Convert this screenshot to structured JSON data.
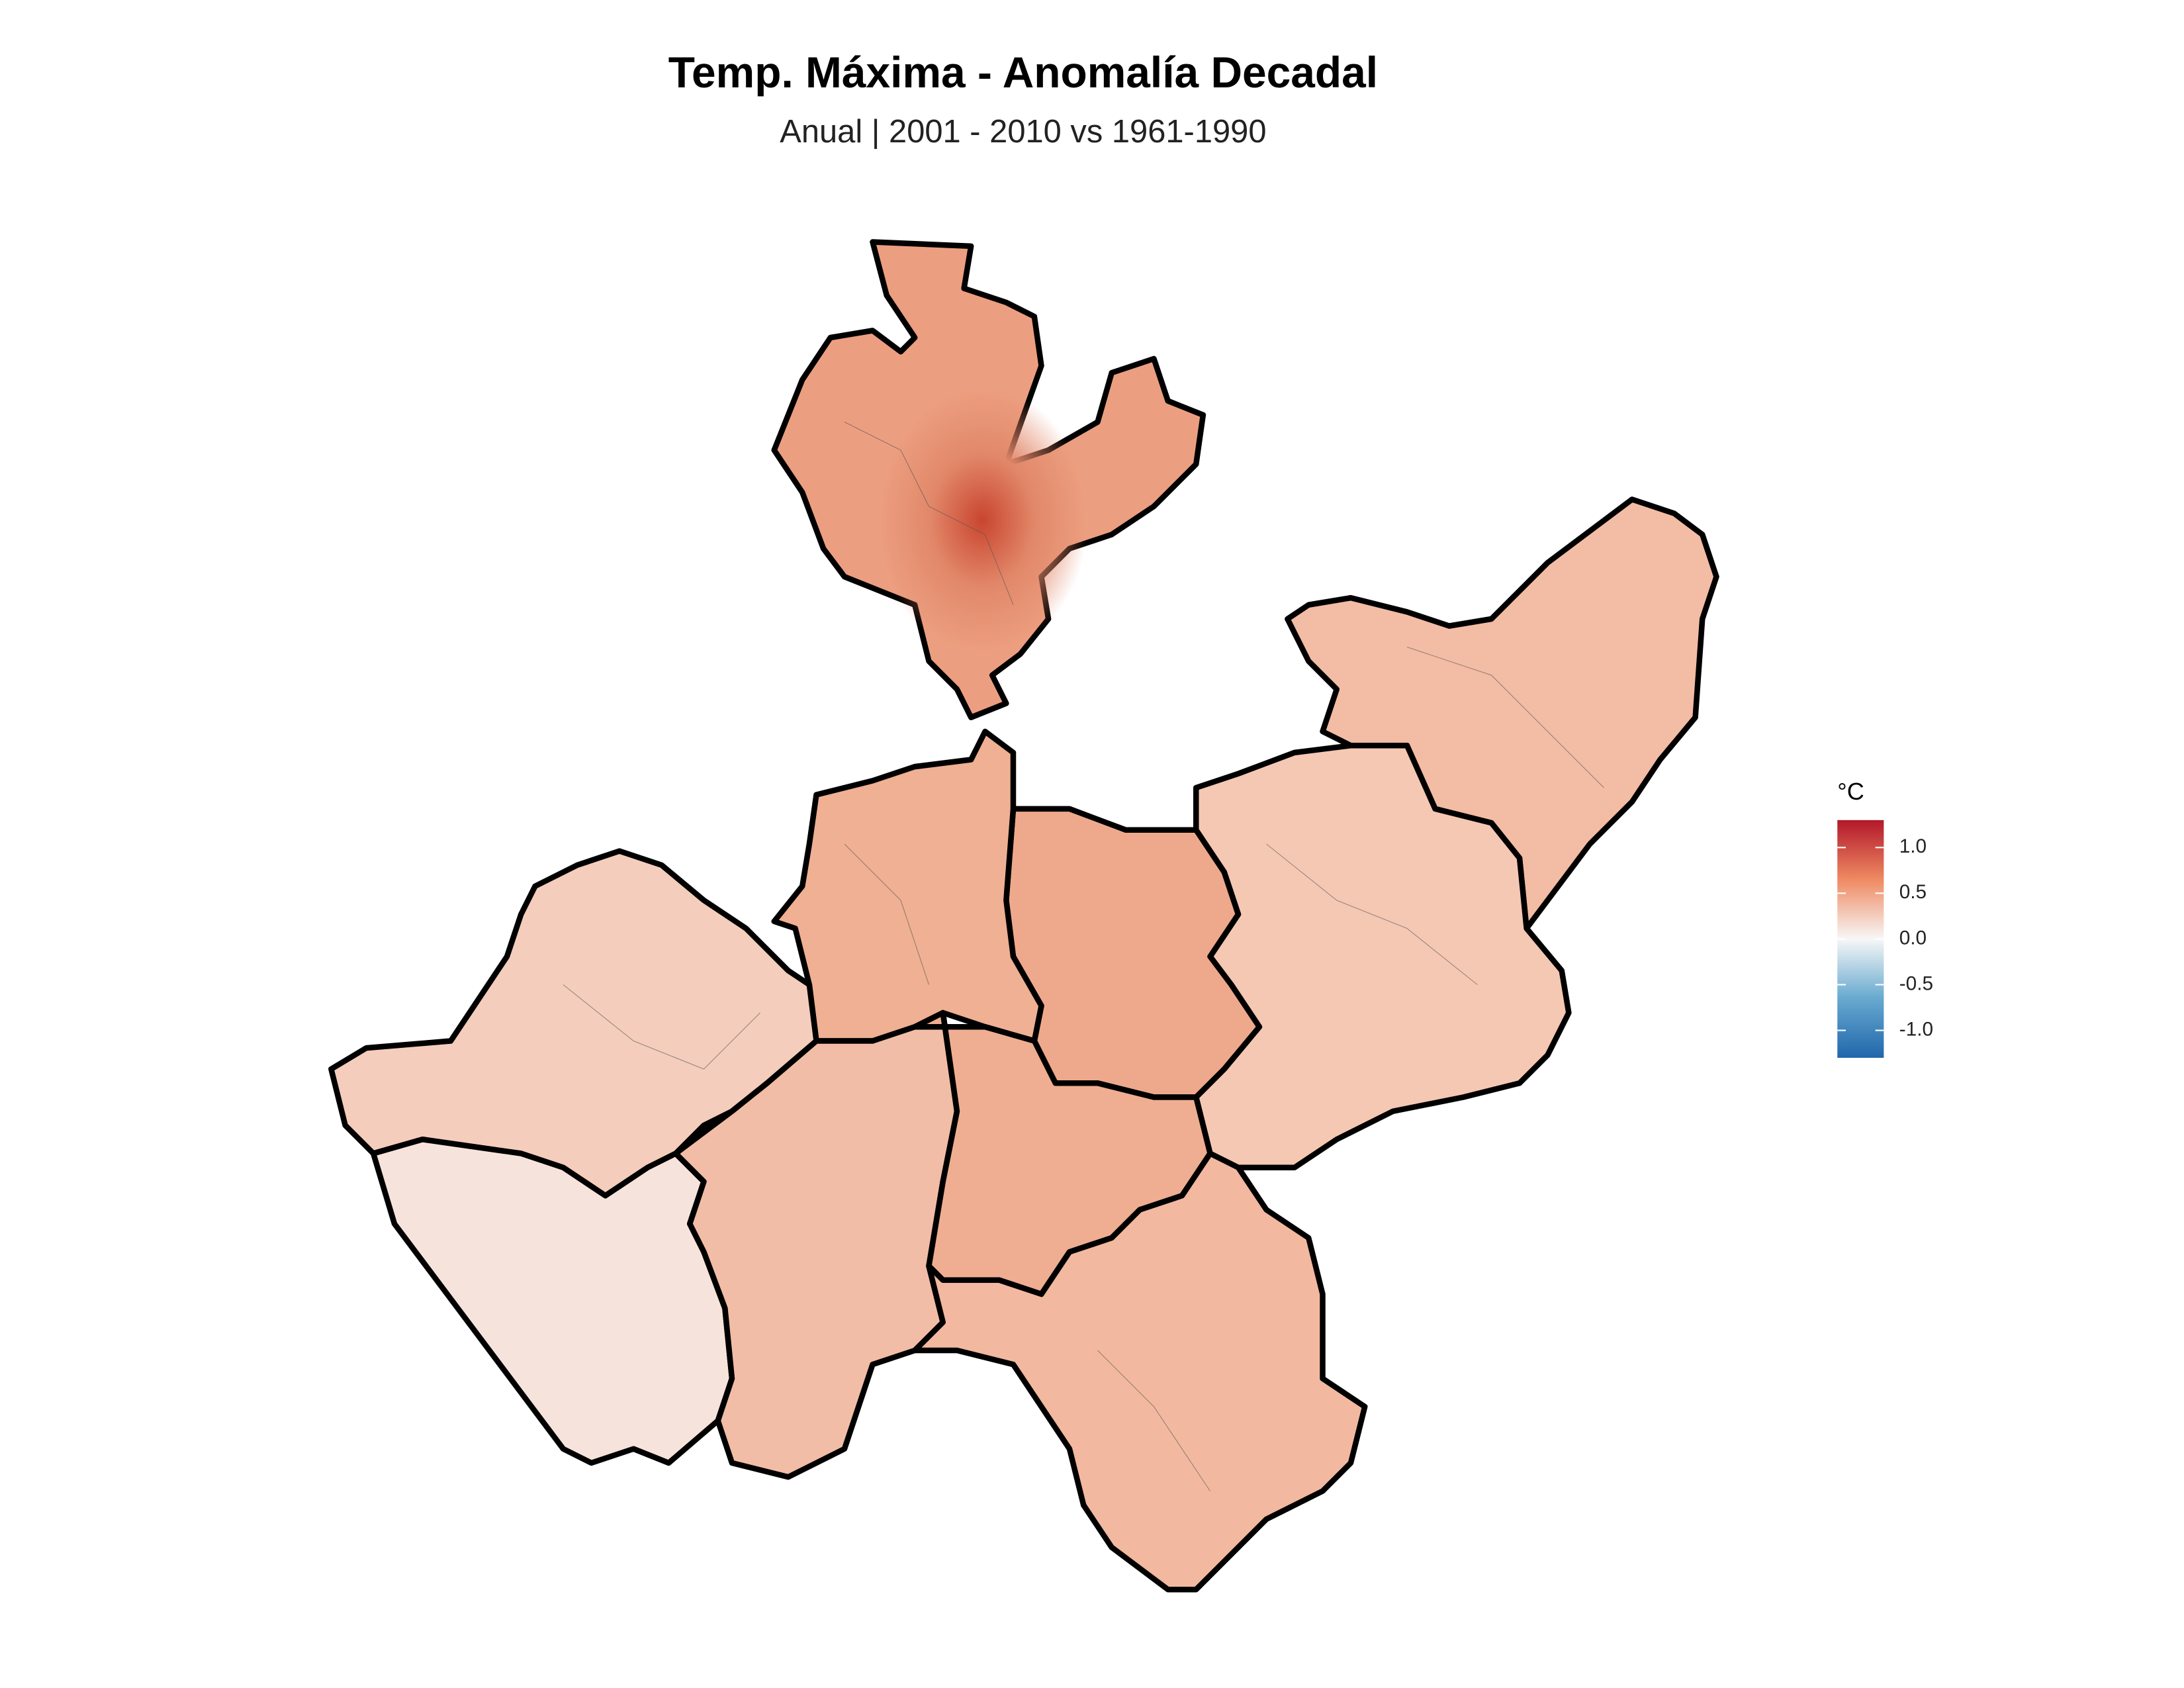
{
  "title": "Temp. Máxima - Anomalía Decadal",
  "subtitle": "Anual | 2001 - 2010 vs 1961-1990",
  "legend": {
    "title": "°C",
    "limits": [
      -1.3,
      1.3
    ],
    "ticks": [
      {
        "value": 1,
        "label": "1.0"
      },
      0.5,
      {
        "value": 0,
        "label": "0.0"
      },
      -0.5,
      {
        "value": -1,
        "label": "-1.0"
      }
    ],
    "colors": [
      "#b2182b",
      "#ef8a62",
      "#f7f7f7",
      "#67a9cf",
      "#2166ac"
    ]
  }
}
